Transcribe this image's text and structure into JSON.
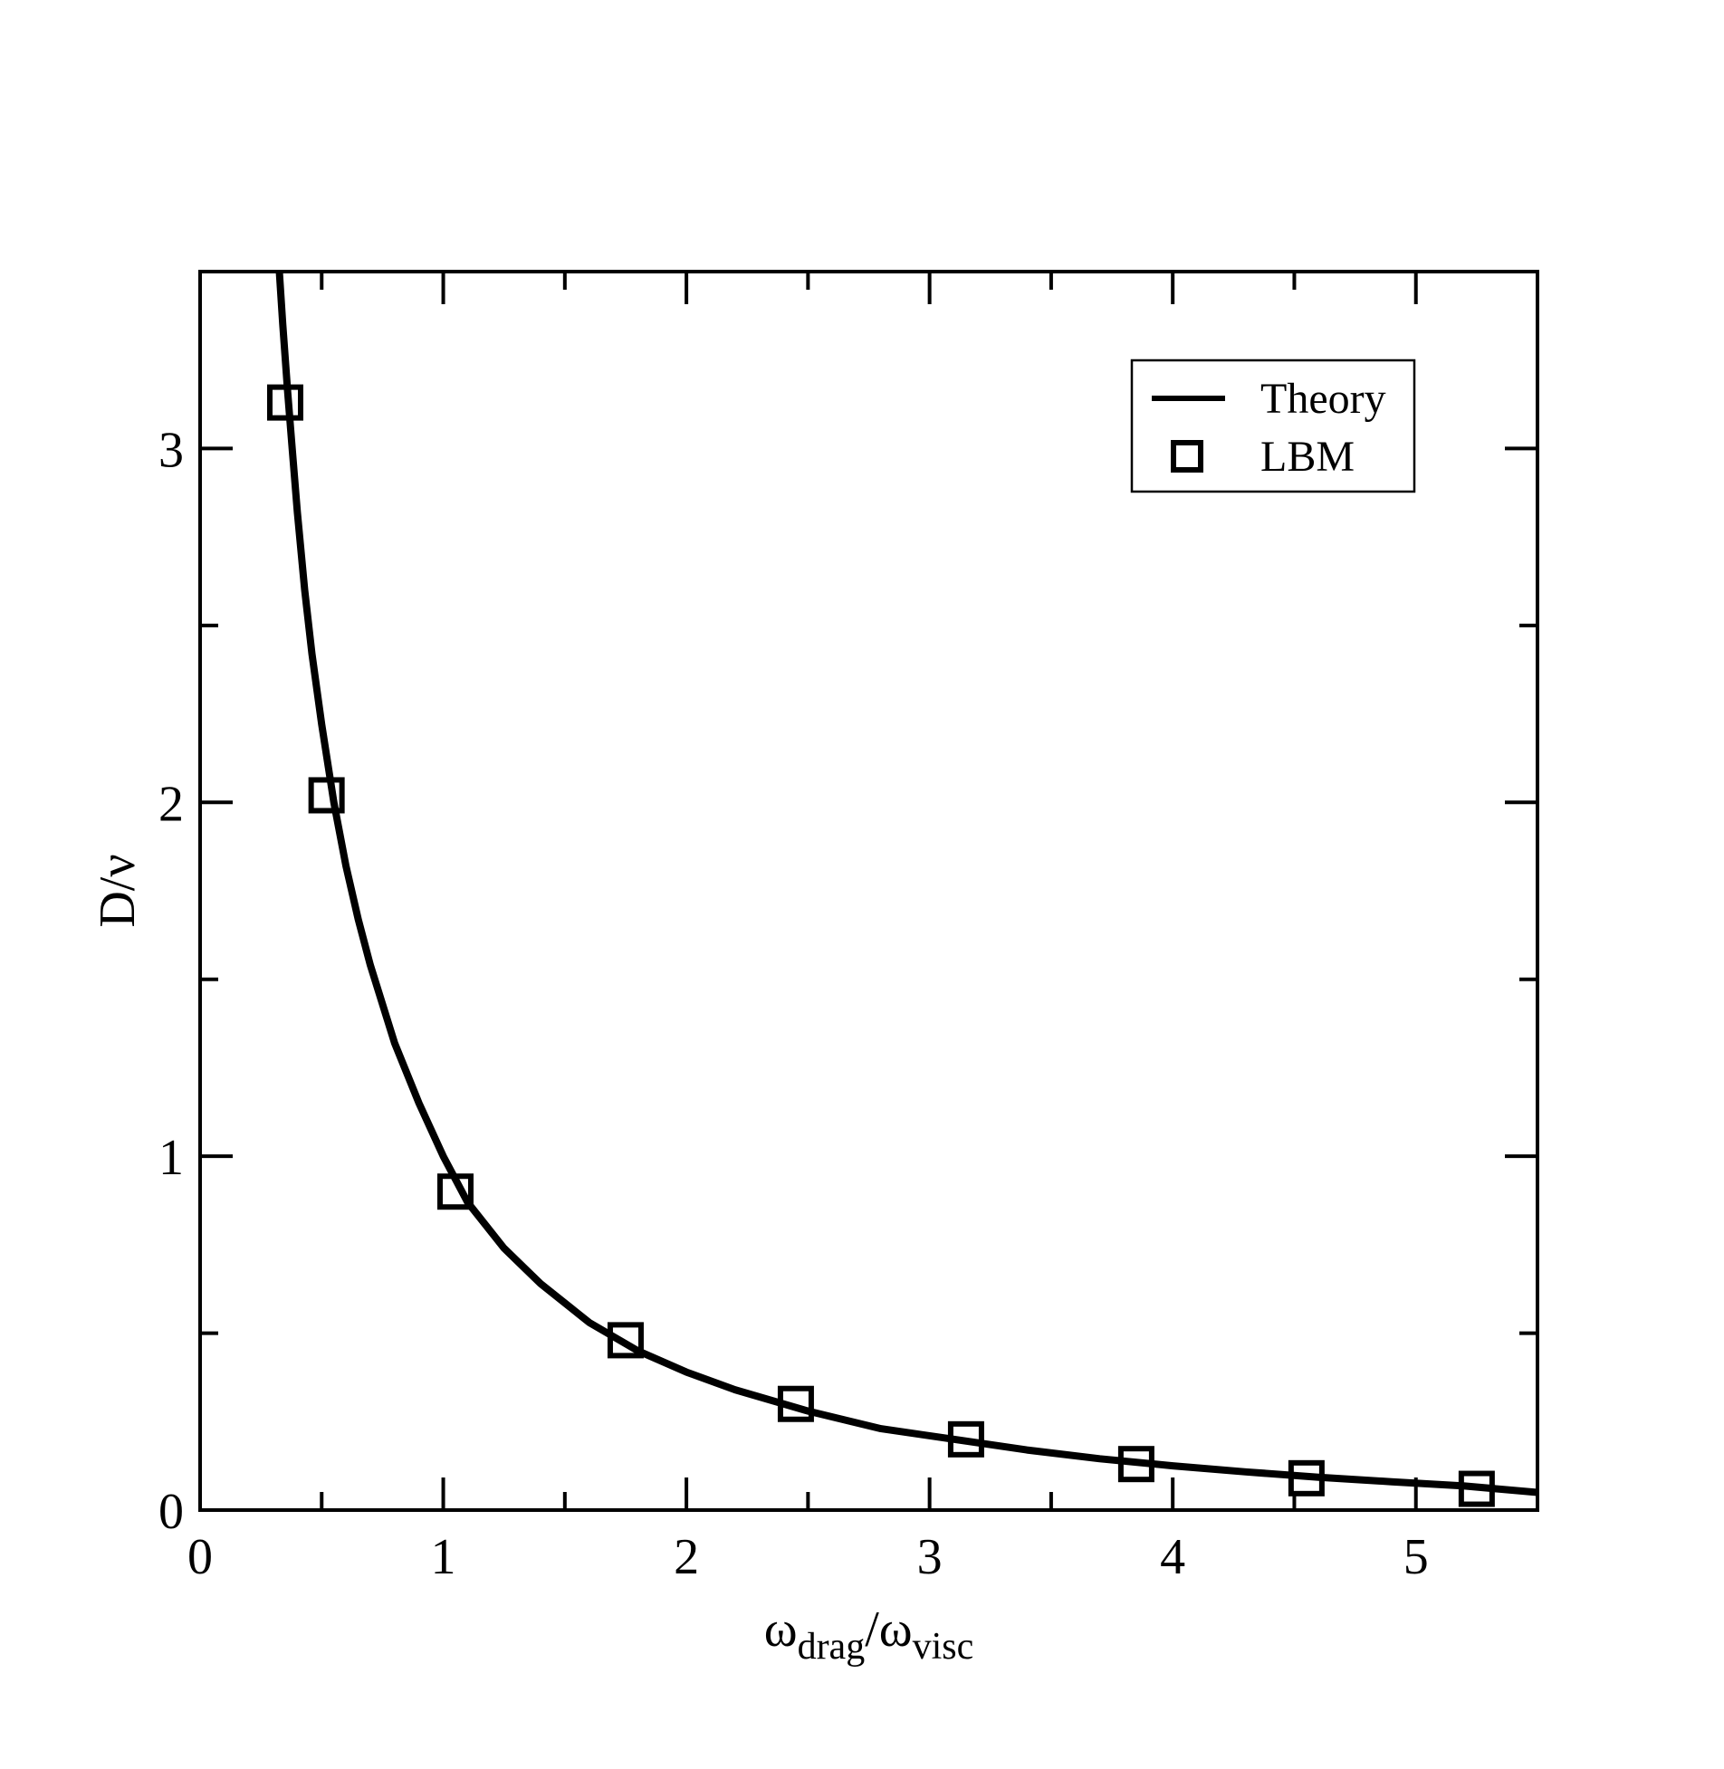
{
  "chart_data": {
    "type": "line",
    "xlabel": {
      "main": "ω",
      "sub1": "drag",
      "slash": "/ω",
      "sub2": "visc"
    },
    "ylabel": "D/ν",
    "xlim": [
      0,
      5.5
    ],
    "ylim": [
      0,
      3.5
    ],
    "x_ticks": [
      0,
      1,
      2,
      3,
      4,
      5
    ],
    "x_tick_labels": [
      "0",
      "1",
      "2",
      "3",
      "4",
      "5"
    ],
    "x_minor_ticks": [
      0.5,
      1.5,
      2.5,
      3.5,
      4.5
    ],
    "y_ticks": [
      0,
      1,
      2,
      3
    ],
    "y_tick_labels": [
      "0",
      "1",
      "2",
      "3"
    ],
    "y_minor_ticks": [
      0.5,
      1.5,
      2.5
    ],
    "grid": false,
    "legend_position": "top-right",
    "series": [
      {
        "name": "Theory",
        "style": "line",
        "color": "#000000",
        "x": [
          0.326,
          0.34,
          0.36,
          0.38,
          0.4,
          0.43,
          0.46,
          0.5,
          0.55,
          0.6,
          0.65,
          0.7,
          0.8,
          0.9,
          1.0,
          1.1,
          1.25,
          1.4,
          1.6,
          1.8,
          2.0,
          2.2,
          2.5,
          2.8,
          3.1,
          3.4,
          3.7,
          4.0,
          4.3,
          4.6,
          4.9,
          5.2,
          5.5
        ],
        "y": [
          3.5,
          3.35,
          3.16,
          2.99,
          2.82,
          2.6,
          2.42,
          2.22,
          2.0,
          1.82,
          1.67,
          1.54,
          1.32,
          1.15,
          1.0,
          0.87,
          0.74,
          0.64,
          0.53,
          0.45,
          0.39,
          0.34,
          0.28,
          0.23,
          0.2,
          0.17,
          0.145,
          0.125,
          0.108,
          0.093,
          0.08,
          0.068,
          0.05
        ]
      },
      {
        "name": "LBM",
        "style": "marker",
        "marker": "square",
        "color": "#000000",
        "x": [
          0.35,
          0.52,
          1.05,
          1.75,
          2.45,
          3.15,
          3.85,
          4.55,
          5.25
        ],
        "y": [
          3.13,
          2.02,
          0.9,
          0.48,
          0.3,
          0.2,
          0.13,
          0.09,
          0.06
        ]
      }
    ]
  }
}
